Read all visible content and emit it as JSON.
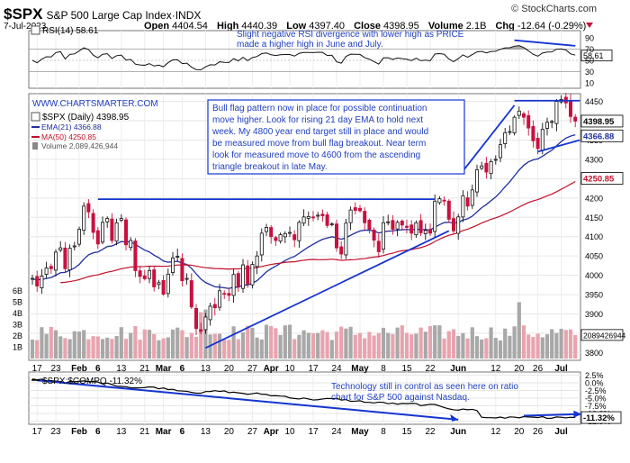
{
  "header": {
    "symbol": "$SPX",
    "name": "S&P 500 Large Cap Index",
    "exchange": "INDX",
    "date": "7-Jul-2023",
    "open_label": "Open",
    "open": "4404.54",
    "high_label": "High",
    "high": "4440.39",
    "low_label": "Low",
    "low": "4397.40",
    "close_label": "Close",
    "close": "4398.95",
    "volume_label": "Volume",
    "volume": "2.1B",
    "chg_label": "Chg",
    "chg": "-12.64 (-0.29%)",
    "brand": "© StockCharts.com"
  },
  "rsi": {
    "label": "RSI(14) 58.61",
    "ticks": [
      "90",
      "70",
      "50",
      "30",
      "10"
    ],
    "current": "58.61",
    "annotation": [
      "Slight negative RSI divergence with lower high as PRICE",
      "made a higher high in June and July."
    ]
  },
  "price": {
    "watermark": "WWW.CHARTSMARTER.COM",
    "legend_main": "$SPX (Daily) 4398.95",
    "legend_ema": "EMA(21) 4366.88",
    "legend_ma": "MA(50) 4250.85",
    "legend_vol": "Volume 2,089,426,944",
    "ticks": [
      "4450",
      "4400",
      "4350",
      "4300",
      "4250",
      "4200",
      "4150",
      "4100",
      "4050",
      "4000",
      "3950",
      "3900",
      "3850",
      "3800"
    ],
    "vol_ticks": [
      "6B",
      "5B",
      "4B",
      "3B",
      "2B",
      "1B"
    ],
    "last_close": "4398.95",
    "last_ema": "4366.88",
    "last_ma": "4250.85",
    "last_volume": "2089426944",
    "annotation": [
      "Bull flag pattern now in place for possible continuation",
      "move higher. Look for rising 21 day EMA to hold next",
      "week. My 4800 year end target still in place and would",
      "be measured move from bull flag breakout. Near term",
      "look for measured move to 4600 from the ascending",
      "triangle breakout in late May."
    ]
  },
  "ratio": {
    "label": "$SPX:$COMPQ -11.32%",
    "ticks": [
      "2.5%",
      "0.0%",
      "-2.5%",
      "-5.0%",
      "-7.5%",
      "-10.0%",
      "-12.5%"
    ],
    "current": "-11.32%",
    "annotation": [
      "Technology still in control as seen here on ratio",
      "chart for S&P 500 against Nasdaq."
    ]
  },
  "xaxis": {
    "labels": [
      {
        "t": "17",
        "d": 1,
        "b": false
      },
      {
        "t": "23",
        "d": 5,
        "b": false
      },
      {
        "t": "Feb",
        "d": 10,
        "b": true
      },
      {
        "t": "6",
        "d": 14,
        "b": true
      },
      {
        "t": "13",
        "d": 19,
        "b": false
      },
      {
        "t": "21",
        "d": 24,
        "b": false
      },
      {
        "t": "Mar",
        "d": 28,
        "b": true
      },
      {
        "t": "6",
        "d": 32,
        "b": true
      },
      {
        "t": "13",
        "d": 37,
        "b": false
      },
      {
        "t": "20",
        "d": 42,
        "b": false
      },
      {
        "t": "27",
        "d": 47,
        "b": false
      },
      {
        "t": "Apr",
        "d": 51,
        "b": true
      },
      {
        "t": "10",
        "d": 55,
        "b": false
      },
      {
        "t": "17",
        "d": 60,
        "b": false
      },
      {
        "t": "24",
        "d": 65,
        "b": false
      },
      {
        "t": "May",
        "d": 70,
        "b": true
      },
      {
        "t": "8",
        "d": 75,
        "b": false
      },
      {
        "t": "15",
        "d": 80,
        "b": false
      },
      {
        "t": "22",
        "d": 85,
        "b": false
      },
      {
        "t": "Jun",
        "d": 91,
        "b": true
      },
      {
        "t": "12",
        "d": 99,
        "b": false
      },
      {
        "t": "20",
        "d": 104,
        "b": false
      },
      {
        "t": "26",
        "d": 108,
        "b": false
      },
      {
        "t": "Jul",
        "d": 113,
        "b": true
      }
    ]
  },
  "colors": {
    "up": "#111111",
    "down": "#c8103e",
    "ema": "#1f2fa0",
    "ma": "#c0102a",
    "vol_up": "#a8a8a8",
    "vol_down": "#e8a4ae",
    "trend": "#1535d0",
    "annotation": "#1f3fbf"
  },
  "chart_data": {
    "type": "candlestick",
    "start_value": 3990,
    "closes": [
      3990,
      3972,
      3998,
      4019,
      4017,
      4060,
      4071,
      4017,
      4070,
      4076,
      4119,
      4179,
      4164,
      4111,
      4081,
      4137,
      4147,
      4090,
      4136,
      4147,
      4079,
      4090,
      4012,
      3997,
      3991,
      4012,
      3970,
      3981,
      3951,
      4003,
      4045,
      4048,
      3986,
      3992,
      3918,
      3862,
      3855,
      3892,
      3920,
      3916,
      3960,
      3951,
      3948,
      4002,
      3970,
      4027,
      3977,
      4028,
      4050,
      4109,
      4124,
      4100,
      4090,
      4105,
      4108,
      4109,
      4092,
      4137,
      4151,
      4152,
      4151,
      4155,
      4154,
      4129,
      4133,
      4071,
      4055,
      4135,
      4169,
      4168,
      4167,
      4136,
      4119,
      4091,
      4061,
      4136,
      4138,
      4119,
      4137,
      4130,
      4124,
      4109,
      4136,
      4110,
      4116,
      4109,
      4192,
      4198,
      4192,
      4145,
      4115,
      4151,
      4206,
      4179,
      4221,
      4273,
      4283,
      4267,
      4294,
      4298,
      4338,
      4369,
      4372,
      4409,
      4425,
      4409,
      4381,
      4348,
      4328,
      4378,
      4396,
      4398,
      4450,
      4455,
      4446,
      4411,
      4399
    ],
    "ema21_last": 4366.88,
    "ma50_last": 4250.85,
    "volume_last": 2089426944,
    "rsi_last": 58.61,
    "ratio_last": -11.32,
    "y_range": [
      3780,
      4470
    ],
    "rsi_range": [
      0,
      100
    ],
    "ratio_range": [
      -13.5,
      3.5
    ],
    "xlabel": "",
    "ylabel": ""
  }
}
